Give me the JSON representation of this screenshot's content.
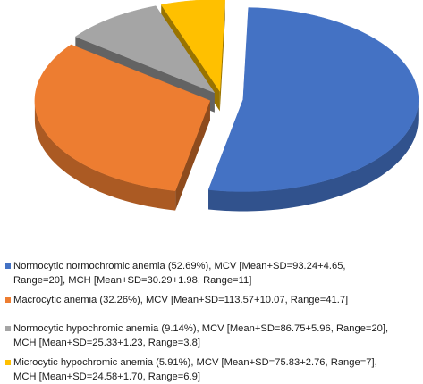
{
  "chart_data": {
    "type": "pie",
    "three_d": true,
    "exploded": true,
    "labels": [
      "Normocytic normochromic anemia (52.69%), MCV [Mean+SD=93.24+4.65, Range=20], MCH [Mean+SD=30.29+1.98, Range=11]",
      "Macrocytic anemia (32.26%), MCV [Mean+SD=113.57+10.07, Range=41.7]",
      "Normocytic hypochromic anemia (9.14%), MCV [Mean+SD=86.75+5.96, Range=20], MCH [Mean+SD=25.33+1.23, Range=3.8]",
      "Microcytic hypochromic anemia (5.91%), MCV [Mean+SD=75.83+2.76, Range=7], MCH [Mean+SD=24.58+1.70, Range=6.9]"
    ],
    "values": [
      52.69,
      32.26,
      9.14,
      5.91
    ],
    "colors": [
      "#4472C4",
      "#ED7D31",
      "#A5A5A5",
      "#FFC000"
    ],
    "legend_position": "bottom"
  },
  "legend": {
    "items": [
      {
        "line1": "Normocytic normochromic anemia (52.69%), MCV [Mean+SD=93.24+4.65,",
        "line2": "Range=20], MCH [Mean+SD=30.29+1.98, Range=11]",
        "color": "#4472C4"
      },
      {
        "line1": "Macrocytic anemia (32.26%), MCV [Mean+SD=113.57+10.07, Range=41.7]",
        "line2": "",
        "color": "#ED7D31"
      },
      {
        "line1": "Normocytic hypochromic anemia (9.14%), MCV [Mean+SD=86.75+5.96, Range=20],",
        "line2": "MCH [Mean+SD=25.33+1.23, Range=3.8]",
        "color": "#A5A5A5"
      },
      {
        "line1": "Microcytic hypochromic anemia (5.91%), MCV [Mean+SD=75.83+2.76, Range=7],",
        "line2": "MCH [Mean+SD=24.58+1.70, Range=6.9]",
        "color": "#FFC000"
      }
    ]
  }
}
